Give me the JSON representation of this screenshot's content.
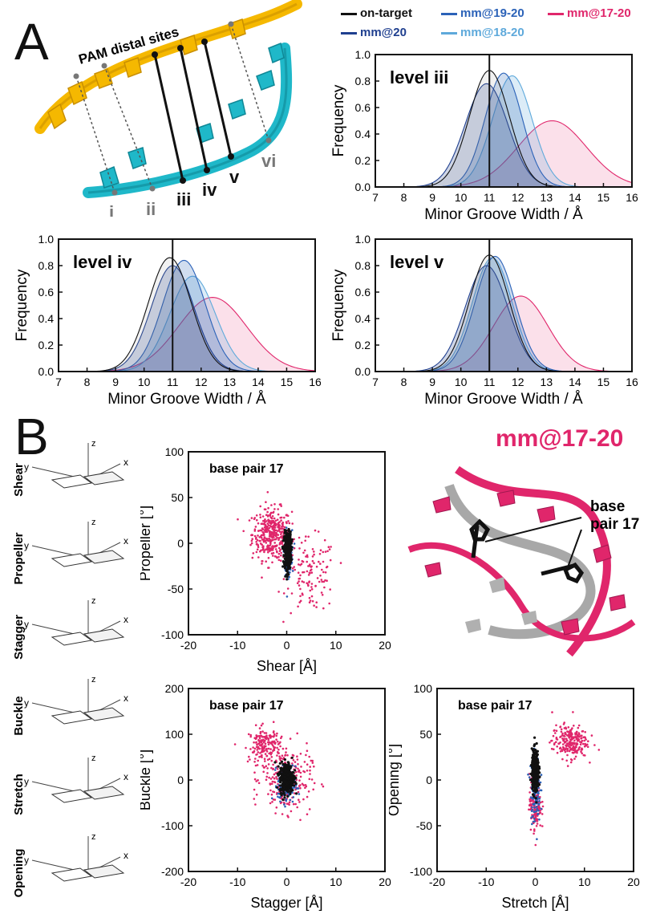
{
  "panels": {
    "a_letter": "A",
    "b_letter": "B"
  },
  "colors": {
    "on_target": "#111111",
    "mm20": "#1f3f8f",
    "mm1920": "#2b62b8",
    "mm1820": "#5ea9db",
    "mm1720": "#e0266b",
    "dna_yellow": "#f5b800",
    "dna_cyan": "#1fb8c9"
  },
  "legend": {
    "on_target": "on-target",
    "mm20": "mm@20",
    "mm1920": "mm@19-20",
    "mm1820": "mm@18-20",
    "mm1720": "mm@17-20"
  },
  "dna": {
    "title": "PAM distal sites",
    "levels": [
      "i",
      "ii",
      "iii",
      "iv",
      "v",
      "vi"
    ]
  },
  "structure": {
    "title": "mm@17-20",
    "bp_label": "base pair 17"
  },
  "schematic": {
    "labels": [
      "Shear",
      "Propeller",
      "Stagger",
      "Buckle",
      "Stretch",
      "Opening"
    ]
  },
  "chart_data": [
    {
      "type": "area",
      "label": "level iii",
      "xlabel": "Minor Groove Width / Å",
      "ylabel": "Frequency",
      "xlim": [
        7,
        16
      ],
      "ylim": [
        0,
        1.0
      ],
      "xticks": [
        "7",
        "8",
        "9",
        "10",
        "11",
        "12",
        "13",
        "14",
        "15",
        "16"
      ],
      "yticks": [
        "0.0",
        "0.2",
        "0.4",
        "0.6",
        "0.8",
        "1.0"
      ],
      "vline": 11,
      "series": [
        {
          "name": "on-target",
          "mean": 11.0,
          "sd": 0.7,
          "peak": 0.88
        },
        {
          "name": "mm@20",
          "mean": 10.9,
          "sd": 0.75,
          "peak": 0.78
        },
        {
          "name": "mm@19-20",
          "mean": 11.5,
          "sd": 0.65,
          "peak": 0.86
        },
        {
          "name": "mm@18-20",
          "mean": 11.8,
          "sd": 0.7,
          "peak": 0.84
        },
        {
          "name": "mm@17-20",
          "mean": 13.2,
          "sd": 1.2,
          "peak": 0.5
        }
      ]
    },
    {
      "type": "area",
      "label": "level iv",
      "xlabel": "Minor Groove Width / Å",
      "ylabel": "Frequency",
      "xlim": [
        7,
        16
      ],
      "ylim": [
        0,
        1.0
      ],
      "xticks": [
        "7",
        "8",
        "9",
        "10",
        "11",
        "12",
        "13",
        "14",
        "15",
        "16"
      ],
      "yticks": [
        "0.0",
        "0.2",
        "0.4",
        "0.6",
        "0.8",
        "1.0"
      ],
      "vline": 11,
      "series": [
        {
          "name": "on-target",
          "mean": 10.9,
          "sd": 0.75,
          "peak": 0.86
        },
        {
          "name": "mm@20",
          "mean": 11.0,
          "sd": 0.75,
          "peak": 0.8
        },
        {
          "name": "mm@19-20",
          "mean": 11.4,
          "sd": 0.75,
          "peak": 0.84
        },
        {
          "name": "mm@18-20",
          "mean": 11.7,
          "sd": 0.8,
          "peak": 0.72
        },
        {
          "name": "mm@17-20",
          "mean": 12.4,
          "sd": 1.2,
          "peak": 0.56
        }
      ]
    },
    {
      "type": "area",
      "label": "level v",
      "xlabel": "Minor Groove Width / Å",
      "ylabel": "Frequency",
      "xlim": [
        7,
        16
      ],
      "ylim": [
        0,
        1.0
      ],
      "xticks": [
        "7",
        "8",
        "9",
        "10",
        "11",
        "12",
        "13",
        "14",
        "15",
        "16"
      ],
      "yticks": [
        "0.0",
        "0.2",
        "0.4",
        "0.6",
        "0.8",
        "1.0"
      ],
      "vline": 11,
      "series": [
        {
          "name": "on-target",
          "mean": 11.0,
          "sd": 0.7,
          "peak": 0.88
        },
        {
          "name": "mm@20",
          "mean": 10.9,
          "sd": 0.75,
          "peak": 0.8
        },
        {
          "name": "mm@19-20",
          "mean": 11.2,
          "sd": 0.7,
          "peak": 0.87
        },
        {
          "name": "mm@18-20",
          "mean": 11.1,
          "sd": 0.7,
          "peak": 0.86
        },
        {
          "name": "mm@17-20",
          "mean": 12.1,
          "sd": 0.95,
          "peak": 0.57
        }
      ]
    },
    {
      "type": "scatter",
      "label": "base pair 17",
      "xlabel": "Shear [Å]",
      "ylabel": "Propeller [°]",
      "xlim": [
        -20,
        20
      ],
      "ylim": [
        -100,
        100
      ],
      "xticks": [
        "-20",
        "-10",
        "0",
        "10",
        "20"
      ],
      "yticks": [
        "-100",
        "-50",
        "0",
        "50",
        "100"
      ],
      "clusters": [
        {
          "name": "mm@17-20",
          "cx": -3,
          "cy": 10,
          "sx": 2.0,
          "sy": 14,
          "n": 380
        },
        {
          "name": "mm@17-20",
          "cx": 5,
          "cy": -35,
          "sx": 2.5,
          "sy": 20,
          "n": 120
        },
        {
          "name": "mm@19-20",
          "cx": 0.3,
          "cy": -10,
          "sx": 0.4,
          "sy": 12,
          "n": 150
        },
        {
          "name": "on-target",
          "cx": 0.2,
          "cy": -8,
          "sx": 0.35,
          "sy": 10,
          "n": 420
        }
      ]
    },
    {
      "type": "scatter",
      "label": "base pair 17",
      "xlabel": "Stagger [Å]",
      "ylabel": "Buckle [°]",
      "xlim": [
        -20,
        20
      ],
      "ylim": [
        -200,
        200
      ],
      "xticks": [
        "-20",
        "-10",
        "0",
        "10",
        "20"
      ],
      "yticks": [
        "-200",
        "-100",
        "0",
        "100",
        "200"
      ],
      "clusters": [
        {
          "name": "mm@17-20",
          "cx": -4.5,
          "cy": 75,
          "sx": 1.6,
          "sy": 20,
          "n": 180
        },
        {
          "name": "mm@17-20",
          "cx": 0,
          "cy": 0,
          "sx": 2.5,
          "sy": 35,
          "n": 260
        },
        {
          "name": "mm@19-20",
          "cx": 0,
          "cy": -10,
          "sx": 0.9,
          "sy": 20,
          "n": 150
        },
        {
          "name": "on-target",
          "cx": 0,
          "cy": 5,
          "sx": 0.7,
          "sy": 16,
          "n": 420
        }
      ]
    },
    {
      "type": "scatter",
      "label": "base pair 17",
      "xlabel": "Stretch [Å]",
      "ylabel": "Opening [°]",
      "xlim": [
        -20,
        20
      ],
      "ylim": [
        -100,
        100
      ],
      "xticks": [
        "-20",
        "-10",
        "0",
        "10",
        "20"
      ],
      "yticks": [
        "-100",
        "-50",
        "0",
        "50",
        "100"
      ],
      "clusters": [
        {
          "name": "mm@17-20",
          "cx": 7,
          "cy": 42,
          "sx": 1.8,
          "sy": 9,
          "n": 230
        },
        {
          "name": "mm@17-20",
          "cx": 0,
          "cy": -25,
          "sx": 0.6,
          "sy": 15,
          "n": 170
        },
        {
          "name": "mm@19-20",
          "cx": 0,
          "cy": -10,
          "sx": 0.5,
          "sy": 18,
          "n": 120
        },
        {
          "name": "on-target",
          "cx": 0,
          "cy": 10,
          "sx": 0.35,
          "sy": 11,
          "n": 380
        }
      ]
    }
  ]
}
